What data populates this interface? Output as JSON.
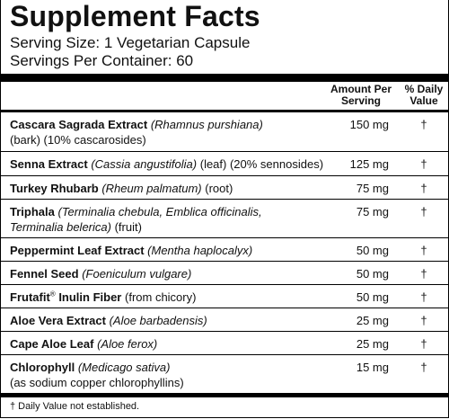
{
  "title": "Supplement Facts",
  "serving_size": "Serving Size: 1 Vegetarian Capsule",
  "servings_per_container": "Servings Per Container: 60",
  "headers": {
    "amount_line1": "Amount Per",
    "amount_line2": "Serving",
    "dv_line1": "% Daily",
    "dv_line2": "Value"
  },
  "rows": [
    {
      "name": "Cascara Sagrada Extract",
      "latin": "(Rhamnus purshiana)",
      "detail": "(bark) (10% cascarosides)",
      "amount": "150 mg",
      "dv": "†"
    },
    {
      "name": "Senna Extract",
      "latin": "(Cassia angustifolia)",
      "detail": "(leaf) (20% sennosides)",
      "amount": "125 mg",
      "dv": "†"
    },
    {
      "name": "Turkey Rhubarb",
      "latin": "(Rheum palmatum)",
      "detail": "(root)",
      "amount": "75 mg",
      "dv": "†"
    },
    {
      "name": "Triphala",
      "latin": "(Terminalia chebula, Emblica officinalis,",
      "latin2": "Terminalia belerica)",
      "detail": "(fruit)",
      "amount": "75 mg",
      "dv": "†"
    },
    {
      "name": "Peppermint Leaf Extract",
      "latin": "(Mentha haplocalyx)",
      "detail": "",
      "amount": "50 mg",
      "dv": "†"
    },
    {
      "name": "Fennel Seed",
      "latin": "(Foeniculum vulgare)",
      "detail": "",
      "amount": "50 mg",
      "dv": "†"
    },
    {
      "name": "Frutafit",
      "name_sup": "®",
      "name_rest": "Inulin Fiber",
      "latin": "",
      "detail": "(from chicory)",
      "amount": "50 mg",
      "dv": "†"
    },
    {
      "name": "Aloe Vera Extract",
      "latin": "(Aloe barbadensis)",
      "detail": "",
      "amount": "25 mg",
      "dv": "†"
    },
    {
      "name": "Cape Aloe Leaf",
      "latin": "(Aloe ferox)",
      "detail": "",
      "amount": "25 mg",
      "dv": "†"
    },
    {
      "name": "Chlorophyll",
      "latin": "(Medicago sativa)",
      "detail": "(as sodium copper chlorophyllins)",
      "amount": "15 mg",
      "dv": "†"
    }
  ],
  "footnote": "† Daily Value not established."
}
